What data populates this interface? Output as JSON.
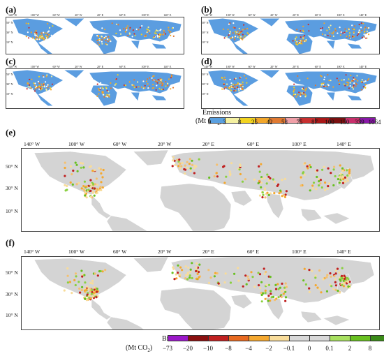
{
  "panels": {
    "a": "(a)",
    "b": "(b)",
    "c": "(c)",
    "d": "(d)",
    "e": "(e)",
    "f": "(f)"
  },
  "lon_ticks": [
    "140° W",
    "100° W",
    "60° W",
    "20° W",
    "20° E",
    "60° E",
    "100° E",
    "140° E"
  ],
  "lat_ticks": [
    "50° N",
    "30° N",
    "10° N"
  ],
  "emissions_bar": {
    "title_line1": "Emissions",
    "title_line2": "(Mt CO",
    "title_sub": "2",
    "title_end": ")",
    "ticks": [
      "0",
      "3",
      "8",
      "25",
      "42",
      "58",
      "75",
      "87",
      "100",
      "150",
      "339",
      "1064"
    ],
    "colors": [
      "#5aa0e0",
      "#f4f0a0",
      "#f2d320",
      "#f2a62a",
      "#e07a32",
      "#f0a0a8",
      "#c83030",
      "#a81818",
      "#7a1010",
      "#c8306c",
      "#8a18a8"
    ]
  },
  "bias_bar": {
    "title_line1": "Bias",
    "title_line2": "(Mt CO",
    "title_sub": "2",
    "title_end": ")",
    "ticks": [
      "−73",
      "−20",
      "−10",
      "−8",
      "−4",
      "−2",
      "−0.1",
      "0",
      "0.1",
      "2",
      "8"
    ],
    "colors": [
      "#9a18c8",
      "#8a1010",
      "#c02020",
      "#e86a20",
      "#f4a830",
      "#f8dc9a",
      "#d8d8d8",
      "#d8d8d8",
      "#a8e060",
      "#68c020",
      "#3a8a18"
    ]
  }
}
